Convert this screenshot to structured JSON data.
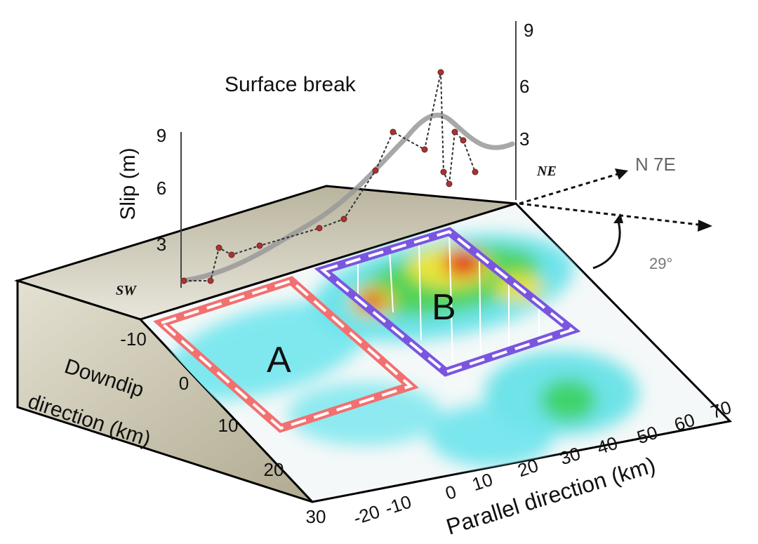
{
  "plot": {
    "title": "Surface break",
    "y_label": "Slip (m)",
    "left_ticks": [
      "9",
      "6",
      "3"
    ],
    "right_ticks": [
      "9",
      "6",
      "3"
    ],
    "sw": "SW",
    "ne": "NE"
  },
  "orientation": {
    "direction": "N 7E",
    "angle": "29°"
  },
  "fault": {
    "downdip_label_1": "Downdip",
    "downdip_label_2": "direction (km)",
    "downdip_ticks": [
      "-10",
      "0",
      "10",
      "20",
      "30"
    ],
    "parallel_label": "Parallel direction (km)",
    "parallel_ticks": [
      "-20",
      "-10",
      "0",
      "10",
      "20",
      "30",
      "40",
      "50",
      "60",
      "70"
    ],
    "box_a": "A",
    "box_b": "B"
  }
}
